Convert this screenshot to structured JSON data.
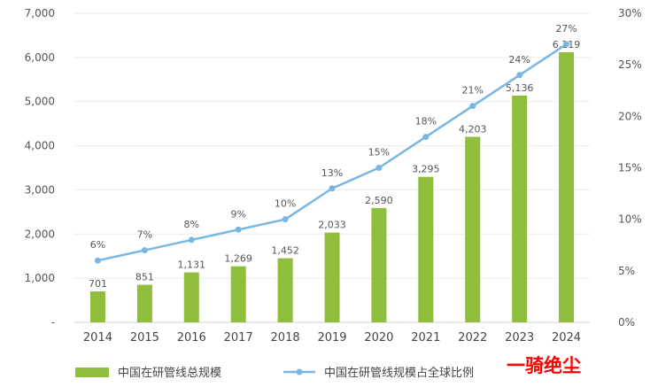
{
  "chart_data": {
    "type": "bar",
    "categories": [
      "2014",
      "2015",
      "2016",
      "2017",
      "2018",
      "2019",
      "2020",
      "2021",
      "2022",
      "2023",
      "2024"
    ],
    "series": [
      {
        "name": "中国在研管线总规模",
        "type": "bar",
        "axis": "left",
        "color": "#8ebe3c",
        "values": [
          701,
          851,
          1131,
          1269,
          1452,
          2033,
          2590,
          3295,
          4203,
          5136,
          6119
        ],
        "labels": [
          "701",
          "851",
          "1,131",
          "1,269",
          "1,452",
          "2,033",
          "2,590",
          "3,295",
          "4,203",
          "5,136",
          "6,119"
        ]
      },
      {
        "name": "中国在研管线规模占全球比例",
        "type": "line",
        "axis": "right",
        "color": "#7ab6e3",
        "values": [
          6,
          7,
          8,
          9,
          10,
          13,
          15,
          18,
          21,
          24,
          27
        ],
        "labels": [
          "6%",
          "7%",
          "8%",
          "9%",
          "10%",
          "13%",
          "15%",
          "18%",
          "21%",
          "24%",
          "27%"
        ]
      }
    ],
    "y_left": {
      "ylim": [
        0,
        7000
      ],
      "ticks": [
        0,
        1000,
        2000,
        3000,
        4000,
        5000,
        6000,
        7000
      ],
      "tick_labels": [
        "-",
        "1,000",
        "2,000",
        "3,000",
        "4,000",
        "5,000",
        "6,000",
        "7,000"
      ]
    },
    "y_right": {
      "ylim": [
        0,
        30
      ],
      "ticks": [
        0,
        5,
        10,
        15,
        20,
        25,
        30
      ],
      "tick_labels": [
        "0%",
        "5%",
        "10%",
        "15%",
        "20%",
        "25%",
        "30%"
      ]
    },
    "grid": true,
    "legend": "bottom"
  },
  "watermark": "一骑绝尘"
}
